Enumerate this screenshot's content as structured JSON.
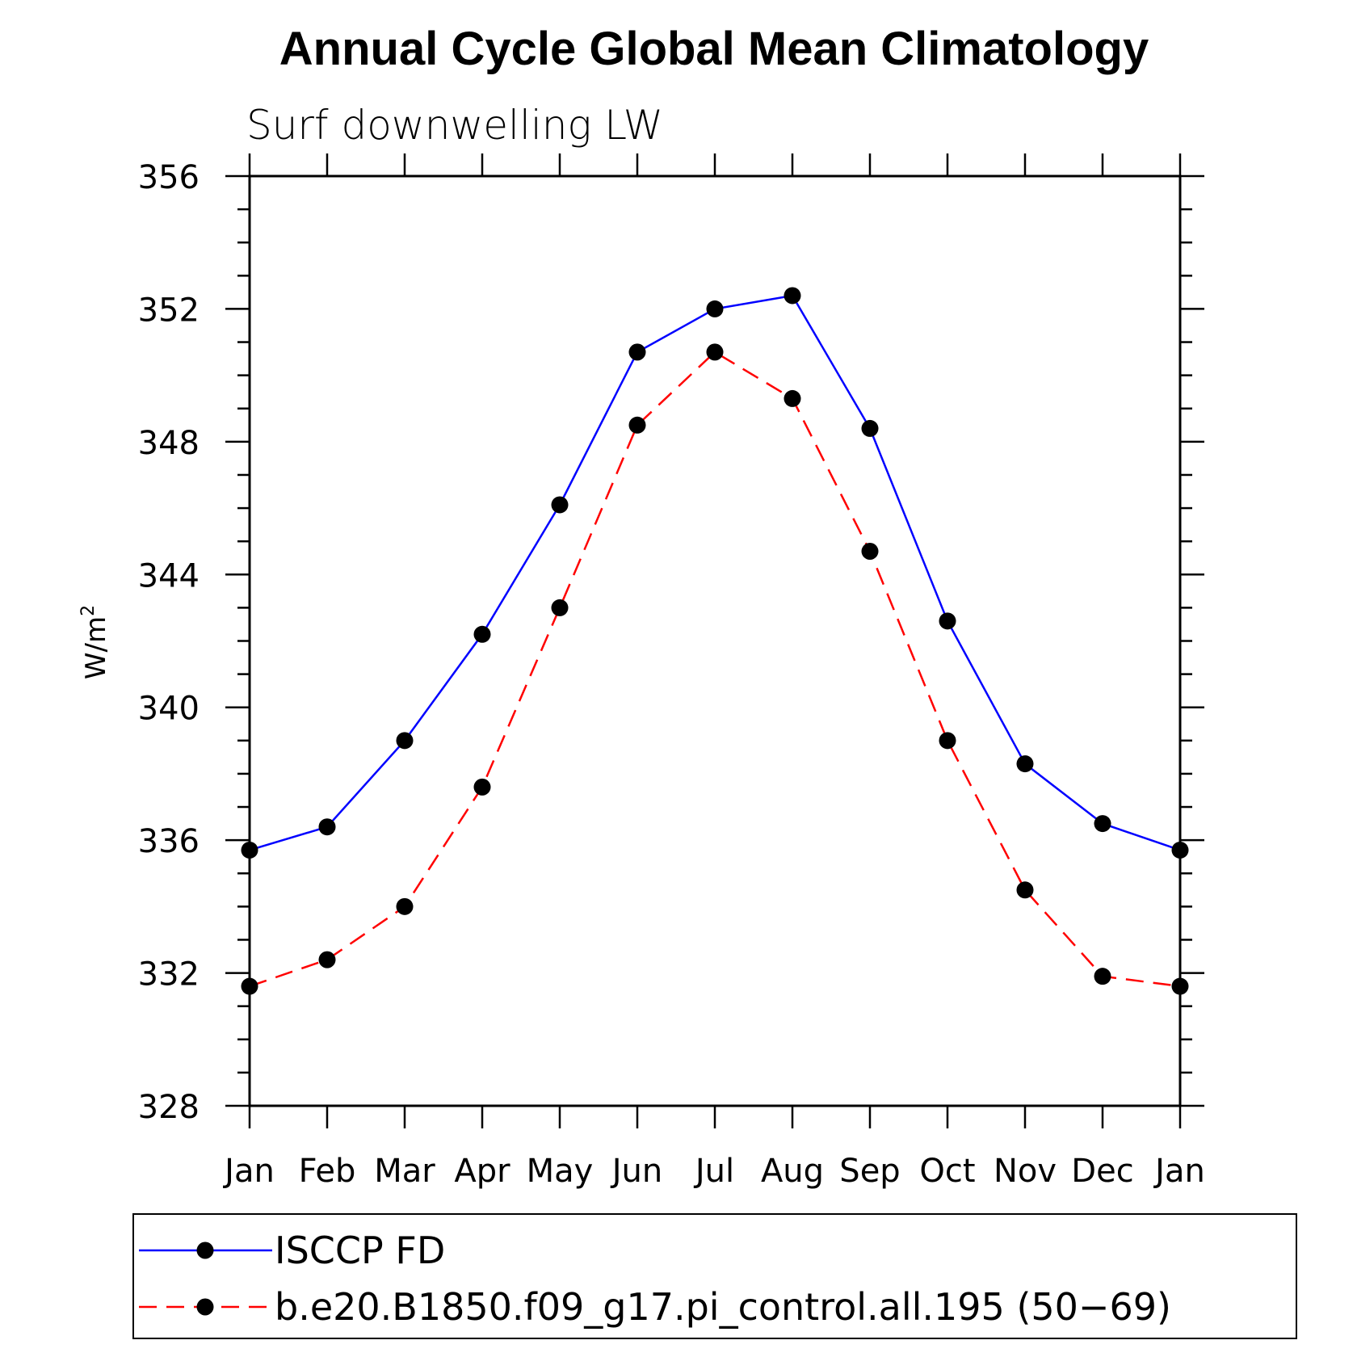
{
  "chart_data": {
    "type": "line",
    "title": "Annual Cycle Global Mean Climatology",
    "subtitle": "Surf downwelling LW",
    "ylabel": "W/m",
    "ylabel_sup": "2",
    "categories": [
      "Jan",
      "Feb",
      "Mar",
      "Apr",
      "May",
      "Jun",
      "Jul",
      "Aug",
      "Sep",
      "Oct",
      "Nov",
      "Dec",
      "Jan"
    ],
    "ylim": [
      328,
      356
    ],
    "yticks": [
      328,
      332,
      336,
      340,
      344,
      348,
      352,
      356
    ],
    "yminor_step": 1,
    "grid": false,
    "legend_position": "bottom",
    "series": [
      {
        "name": "ISCCP FD",
        "color": "#0000ff",
        "style": "solid",
        "marker": "filled-circle",
        "values": [
          335.7,
          336.4,
          339.0,
          342.2,
          346.1,
          350.7,
          352.0,
          352.4,
          348.4,
          342.6,
          338.3,
          336.5,
          335.7
        ]
      },
      {
        "name": "b.e20.B1850.f09_g17.pi_control.all.195 (50−69)",
        "color": "#ff0000",
        "style": "dashed",
        "marker": "filled-circle",
        "values": [
          331.6,
          332.4,
          334.0,
          337.6,
          343.0,
          348.5,
          350.7,
          349.3,
          344.7,
          339.0,
          334.5,
          331.9,
          331.6
        ]
      }
    ]
  }
}
